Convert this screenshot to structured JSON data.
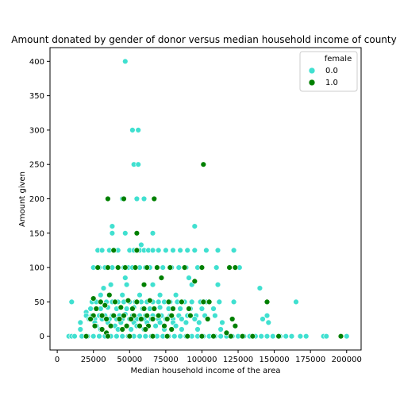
{
  "chart_data": {
    "type": "scatter",
    "title": "Amount donated by gender of donor versus median household income of county",
    "xlabel": "Median household income of the area",
    "ylabel": "Amount given",
    "xlim": [
      -5000,
      210000
    ],
    "ylim": [
      -20,
      420
    ],
    "xticks": [
      0,
      25000,
      50000,
      75000,
      100000,
      125000,
      150000,
      175000,
      200000
    ],
    "yticks": [
      0,
      50,
      100,
      150,
      200,
      250,
      300,
      350,
      400
    ],
    "grid": false,
    "legend": {
      "title": "female",
      "placement": "top-right"
    },
    "series": [
      {
        "name": "0.0",
        "color": "#40e0d0",
        "points": [
          [
            47000,
            400
          ],
          [
            52000,
            300
          ],
          [
            56000,
            300
          ],
          [
            53000,
            250
          ],
          [
            56000,
            250
          ],
          [
            38000,
            160
          ],
          [
            95000,
            160
          ],
          [
            38000,
            150
          ],
          [
            47000,
            150
          ],
          [
            66000,
            150
          ],
          [
            58000,
            133
          ],
          [
            60000,
            200
          ],
          [
            45000,
            200
          ],
          [
            55000,
            200
          ],
          [
            28000,
            125
          ],
          [
            31000,
            125
          ],
          [
            36000,
            125
          ],
          [
            40000,
            125
          ],
          [
            42000,
            125
          ],
          [
            50000,
            125
          ],
          [
            53000,
            125
          ],
          [
            57000,
            125
          ],
          [
            60000,
            125
          ],
          [
            63000,
            125
          ],
          [
            66000,
            125
          ],
          [
            70000,
            125
          ],
          [
            75000,
            125
          ],
          [
            80000,
            125
          ],
          [
            85000,
            125
          ],
          [
            90000,
            125
          ],
          [
            95000,
            125
          ],
          [
            103000,
            125
          ],
          [
            111000,
            125
          ],
          [
            122000,
            125
          ],
          [
            25000,
            100
          ],
          [
            29000,
            100
          ],
          [
            33000,
            100
          ],
          [
            38000,
            100
          ],
          [
            42000,
            100
          ],
          [
            46000,
            100
          ],
          [
            49000,
            100
          ],
          [
            52000,
            100
          ],
          [
            57000,
            100
          ],
          [
            61000,
            100
          ],
          [
            64000,
            100
          ],
          [
            69000,
            100
          ],
          [
            73000,
            100
          ],
          [
            79000,
            100
          ],
          [
            84000,
            100
          ],
          [
            89000,
            100
          ],
          [
            97000,
            100
          ],
          [
            110000,
            100
          ],
          [
            126000,
            100
          ],
          [
            47000,
            85
          ],
          [
            91000,
            85
          ],
          [
            48000,
            75
          ],
          [
            32000,
            70
          ],
          [
            37000,
            75
          ],
          [
            66000,
            75
          ],
          [
            93000,
            75
          ],
          [
            111000,
            75
          ],
          [
            140000,
            70
          ],
          [
            30000,
            60
          ],
          [
            45000,
            60
          ],
          [
            57000,
            60
          ],
          [
            71000,
            60
          ],
          [
            82000,
            60
          ],
          [
            24000,
            50
          ],
          [
            27000,
            50
          ],
          [
            30000,
            50
          ],
          [
            34000,
            50
          ],
          [
            38000,
            50
          ],
          [
            42000,
            50
          ],
          [
            46000,
            50
          ],
          [
            50000,
            50
          ],
          [
            54000,
            50
          ],
          [
            58000,
            50
          ],
          [
            62000,
            50
          ],
          [
            66000,
            50
          ],
          [
            70000,
            50
          ],
          [
            74000,
            50
          ],
          [
            78000,
            50
          ],
          [
            83000,
            50
          ],
          [
            88000,
            50
          ],
          [
            93000,
            50
          ],
          [
            99000,
            50
          ],
          [
            103000,
            50
          ],
          [
            112000,
            50
          ],
          [
            122000,
            50
          ],
          [
            165000,
            50
          ],
          [
            10000,
            50
          ],
          [
            23000,
            40
          ],
          [
            30000,
            40
          ],
          [
            35000,
            42
          ],
          [
            41000,
            40
          ],
          [
            48000,
            40
          ],
          [
            53000,
            42
          ],
          [
            59000,
            40
          ],
          [
            64000,
            40
          ],
          [
            71000,
            42
          ],
          [
            77000,
            40
          ],
          [
            85000,
            40
          ],
          [
            92000,
            40
          ],
          [
            100000,
            40
          ],
          [
            108000,
            40
          ],
          [
            20000,
            35
          ],
          [
            20000,
            30
          ],
          [
            24000,
            30
          ],
          [
            29000,
            30
          ],
          [
            33000,
            30
          ],
          [
            38000,
            30
          ],
          [
            43000,
            30
          ],
          [
            47000,
            32
          ],
          [
            52000,
            30
          ],
          [
            57000,
            30
          ],
          [
            61000,
            30
          ],
          [
            66000,
            30
          ],
          [
            72000,
            30
          ],
          [
            78000,
            30
          ],
          [
            84000,
            30
          ],
          [
            90000,
            30
          ],
          [
            96000,
            30
          ],
          [
            102000,
            30
          ],
          [
            109000,
            30
          ],
          [
            114000,
            20
          ],
          [
            142000,
            25
          ],
          [
            145000,
            30
          ],
          [
            146000,
            20
          ],
          [
            22000,
            25
          ],
          [
            26000,
            25
          ],
          [
            31000,
            25
          ],
          [
            36000,
            25
          ],
          [
            41000,
            25
          ],
          [
            45000,
            25
          ],
          [
            50000,
            25
          ],
          [
            55000,
            25
          ],
          [
            60000,
            25
          ],
          [
            65000,
            25
          ],
          [
            70000,
            25
          ],
          [
            75000,
            25
          ],
          [
            80000,
            25
          ],
          [
            86000,
            25
          ],
          [
            95000,
            25
          ],
          [
            104000,
            25
          ],
          [
            16000,
            20
          ],
          [
            26000,
            20
          ],
          [
            35000,
            20
          ],
          [
            44000,
            20
          ],
          [
            53000,
            20
          ],
          [
            62000,
            20
          ],
          [
            71000,
            20
          ],
          [
            80000,
            20
          ],
          [
            89000,
            20
          ],
          [
            98000,
            20
          ],
          [
            27000,
            15
          ],
          [
            40000,
            15
          ],
          [
            55000,
            15
          ],
          [
            68000,
            15
          ],
          [
            82000,
            15
          ],
          [
            16000,
            10
          ],
          [
            30000,
            10
          ],
          [
            42000,
            10
          ],
          [
            51000,
            10
          ],
          [
            60000,
            10
          ],
          [
            74000,
            10
          ],
          [
            86000,
            10
          ],
          [
            97000,
            10
          ],
          [
            113000,
            10
          ],
          [
            8000,
            0
          ],
          [
            10000,
            0
          ],
          [
            12000,
            0
          ],
          [
            17000,
            0
          ],
          [
            21000,
            0
          ],
          [
            25000,
            0
          ],
          [
            29000,
            0
          ],
          [
            33000,
            0
          ],
          [
            37000,
            0
          ],
          [
            41000,
            0
          ],
          [
            45000,
            0
          ],
          [
            49000,
            0
          ],
          [
            53000,
            0
          ],
          [
            57000,
            0
          ],
          [
            61000,
            0
          ],
          [
            65000,
            0
          ],
          [
            69000,
            0
          ],
          [
            73000,
            0
          ],
          [
            77000,
            0
          ],
          [
            81000,
            0
          ],
          [
            85000,
            0
          ],
          [
            89000,
            0
          ],
          [
            93000,
            0
          ],
          [
            97000,
            0
          ],
          [
            101000,
            0
          ],
          [
            105000,
            0
          ],
          [
            109000,
            0
          ],
          [
            113000,
            0
          ],
          [
            117000,
            0
          ],
          [
            121000,
            0
          ],
          [
            125000,
            0
          ],
          [
            129000,
            0
          ],
          [
            133000,
            0
          ],
          [
            137000,
            0
          ],
          [
            141000,
            0
          ],
          [
            145000,
            0
          ],
          [
            149000,
            0
          ],
          [
            154000,
            0
          ],
          [
            158000,
            0
          ],
          [
            162000,
            0
          ],
          [
            168000,
            0
          ],
          [
            172000,
            0
          ],
          [
            184000,
            0
          ],
          [
            186000,
            0
          ],
          [
            200000,
            0
          ]
        ]
      },
      {
        "name": "1.0",
        "color": "#008000",
        "points": [
          [
            101000,
            250
          ],
          [
            35000,
            200
          ],
          [
            46000,
            200
          ],
          [
            67000,
            200
          ],
          [
            55000,
            150
          ],
          [
            39000,
            125
          ],
          [
            55000,
            125
          ],
          [
            28000,
            100
          ],
          [
            35000,
            100
          ],
          [
            42000,
            100
          ],
          [
            47000,
            100
          ],
          [
            54000,
            100
          ],
          [
            62000,
            100
          ],
          [
            69000,
            100
          ],
          [
            78000,
            100
          ],
          [
            88000,
            100
          ],
          [
            100000,
            100
          ],
          [
            119000,
            100
          ],
          [
            123000,
            100
          ],
          [
            72000,
            85
          ],
          [
            95000,
            80
          ],
          [
            60000,
            75
          ],
          [
            25000,
            55
          ],
          [
            36000,
            60
          ],
          [
            30000,
            50
          ],
          [
            40000,
            50
          ],
          [
            49000,
            52
          ],
          [
            55000,
            50
          ],
          [
            64000,
            52
          ],
          [
            77000,
            50
          ],
          [
            86000,
            50
          ],
          [
            101000,
            50
          ],
          [
            105000,
            50
          ],
          [
            145000,
            50
          ],
          [
            27000,
            40
          ],
          [
            33000,
            45
          ],
          [
            44000,
            42
          ],
          [
            52000,
            40
          ],
          [
            60000,
            40
          ],
          [
            67000,
            40
          ],
          [
            80000,
            40
          ],
          [
            91000,
            40
          ],
          [
            25000,
            30
          ],
          [
            31000,
            30
          ],
          [
            39000,
            30
          ],
          [
            46000,
            30
          ],
          [
            53000,
            30
          ],
          [
            62000,
            30
          ],
          [
            70000,
            30
          ],
          [
            79000,
            30
          ],
          [
            92000,
            30
          ],
          [
            23000,
            25
          ],
          [
            34000,
            25
          ],
          [
            43000,
            25
          ],
          [
            51000,
            25
          ],
          [
            58000,
            25
          ],
          [
            66000,
            25
          ],
          [
            76000,
            25
          ],
          [
            121000,
            25
          ],
          [
            104000,
            25
          ],
          [
            26000,
            15
          ],
          [
            37000,
            15
          ],
          [
            48000,
            15
          ],
          [
            57000,
            15
          ],
          [
            63000,
            15
          ],
          [
            74000,
            15
          ],
          [
            123000,
            15
          ],
          [
            31000,
            10
          ],
          [
            45000,
            10
          ],
          [
            61000,
            10
          ],
          [
            79000,
            10
          ],
          [
            117000,
            5
          ],
          [
            34000,
            5
          ],
          [
            20000,
            0
          ],
          [
            35000,
            0
          ],
          [
            50000,
            0
          ],
          [
            66000,
            0
          ],
          [
            76000,
            0
          ],
          [
            90000,
            0
          ],
          [
            100000,
            0
          ],
          [
            108000,
            0
          ],
          [
            120000,
            0
          ],
          [
            128000,
            0
          ],
          [
            135000,
            0
          ],
          [
            153000,
            0
          ],
          [
            196000,
            0
          ]
        ]
      }
    ]
  }
}
